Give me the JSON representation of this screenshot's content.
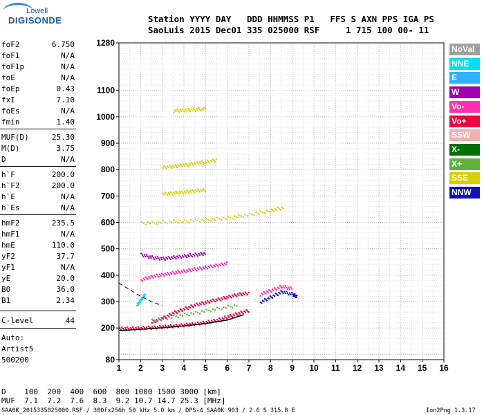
{
  "logo": {
    "line1": "Lowell",
    "line2": "DIGISONDE"
  },
  "header": {
    "line1": "Station YYYY DAY   DDD HHMMSS P1   FFS S AXN PPS IGA PS",
    "line2": "SaoLuis 2015 Dec01 335 025000 RSF     1 715 100 00- 11"
  },
  "params": [
    {
      "name": "foF2",
      "value": "6.750"
    },
    {
      "name": "foF1",
      "value": "N/A"
    },
    {
      "name": "foF1p",
      "value": "N/A"
    },
    {
      "name": "foE",
      "value": "N/A"
    },
    {
      "name": "foEp",
      "value": "0.43"
    },
    {
      "name": "fxI",
      "value": "7.10"
    },
    {
      "name": "foEs",
      "value": "N/A"
    },
    {
      "name": "fmin",
      "value": "1.40"
    },
    {
      "name": "MUF(D)",
      "value": "25.30"
    },
    {
      "name": "M(D)",
      "value": "3.75"
    },
    {
      "name": "D",
      "value": "N/A"
    },
    {
      "name": "h`F",
      "value": "200.0"
    },
    {
      "name": "h`F2",
      "value": "200.0"
    },
    {
      "name": "h`E",
      "value": "N/A"
    },
    {
      "name": "h`Es",
      "value": "N/A"
    },
    {
      "name": "hmF2",
      "value": "235.5"
    },
    {
      "name": "hmF1",
      "value": "N/A"
    },
    {
      "name": "hmE",
      "value": "110.0"
    },
    {
      "name": "yF2",
      "value": "37.7"
    },
    {
      "name": "yF1",
      "value": "N/A"
    },
    {
      "name": "yE",
      "value": "20.0"
    },
    {
      "name": "B0",
      "value": "36.0"
    },
    {
      "name": "B1",
      "value": "2.34"
    },
    {
      "name": "C-level",
      "value": "44"
    }
  ],
  "auto": [
    "Auto:",
    "Artist5",
    "500200"
  ],
  "footer": {
    "d_line": "D    100  200  400  600  800 1000 1500 3000 [km]",
    "muf_line": "MUF  7.1  7.2  7.6  8.3  9.2 10.7 14.7 25.3 [MHz]",
    "file_line": "SAA0K_2015335025000.RSF / 300fx256h 50 kHz 5.0 km / DPS-4 SAA0K 903 / 2.6 S 315.8 E",
    "version": "Ion2Png 1.3.17"
  },
  "legend": [
    {
      "label": "NoVal",
      "color": "#a0a0a0"
    },
    {
      "label": "NNE",
      "color": "#00e0f0"
    },
    {
      "label": "E",
      "color": "#30b0ff"
    },
    {
      "label": "W",
      "color": "#9c00b0"
    },
    {
      "label": "Vo-",
      "color": "#ff30b0"
    },
    {
      "label": "Vo+",
      "color": "#f00040"
    },
    {
      "label": "SSW",
      "color": "#f0b0b0"
    },
    {
      "label": "X-",
      "color": "#007000"
    },
    {
      "label": "X+",
      "color": "#60b040"
    },
    {
      "label": "SSE",
      "color": "#d8d000"
    },
    {
      "label": "NNW",
      "color": "#1010c0"
    }
  ],
  "chart_data": {
    "type": "scatter",
    "title": "",
    "xlabel": "",
    "ylabel": "",
    "xlim": [
      1,
      16
    ],
    "ylim": [
      80,
      1280
    ],
    "x_ticks": [
      1,
      2,
      3,
      4,
      5,
      6,
      7,
      8,
      9,
      10,
      11,
      12,
      13,
      14,
      15,
      16
    ],
    "y_ticks": [
      80,
      200,
      300,
      400,
      500,
      600,
      700,
      800,
      900,
      1000,
      1100,
      1280
    ],
    "grid": true,
    "traces": [
      {
        "name": "SSE",
        "color": "#d8d000",
        "x": [
          2.0,
          3.0,
          4.0,
          5.0,
          6.0,
          7.0,
          8.0,
          8.6
        ],
        "y": [
          600,
          603,
          608,
          612,
          620,
          632,
          648,
          660
        ]
      },
      {
        "name": "SSE",
        "color": "#d8d000",
        "x": [
          3.0,
          3.5,
          4.0,
          4.5,
          5.0,
          5.5
        ],
        "y": [
          812,
          815,
          820,
          826,
          832,
          840
        ]
      },
      {
        "name": "SSE",
        "color": "#d8d000",
        "x": [
          3.0,
          3.5,
          4.0,
          4.5,
          5.0
        ],
        "y": [
          710,
          714,
          718,
          722,
          726
        ]
      },
      {
        "name": "SSE",
        "color": "#d8d000",
        "x": [
          3.5,
          4.0,
          4.5,
          5.0
        ],
        "y": [
          1025,
          1028,
          1030,
          1033
        ]
      },
      {
        "name": "Vo-",
        "color": "#ff30b0",
        "x": [
          2.0,
          2.5,
          3.0,
          3.5,
          4.0,
          4.5,
          5.0,
          5.5,
          6.0
        ],
        "y": [
          385,
          398,
          405,
          412,
          418,
          425,
          432,
          440,
          448
        ]
      },
      {
        "name": "W",
        "color": "#9c00b0",
        "x": [
          2.0,
          2.5,
          3.0,
          3.5,
          4.0,
          4.5,
          5.0
        ],
        "y": [
          480,
          470,
          465,
          470,
          475,
          480,
          485
        ]
      },
      {
        "name": "Vo+",
        "color": "#f00040",
        "x": [
          2.5,
          3.0,
          3.5,
          4.0,
          4.5,
          5.0,
          5.5,
          6.0,
          6.5,
          7.0
        ],
        "y": [
          225,
          240,
          260,
          275,
          290,
          300,
          310,
          320,
          330,
          335
        ]
      },
      {
        "name": "Vo+",
        "color": "#f00040",
        "x": [
          1.0,
          1.5,
          2.0,
          2.5,
          3.0,
          3.5,
          4.0,
          4.5,
          5.0,
          5.5,
          6.0,
          6.5,
          7.0
        ],
        "y": [
          200,
          201,
          202,
          204,
          207,
          210,
          214,
          218,
          224,
          232,
          245,
          258,
          270
        ]
      },
      {
        "name": "Vo-",
        "color": "#ff30b0",
        "x": [
          7.5,
          8.0,
          8.5,
          9.0
        ],
        "y": [
          330,
          345,
          360,
          350
        ]
      },
      {
        "name": "NNW",
        "color": "#1010c0",
        "x": [
          7.5,
          8.0,
          8.5,
          9.0,
          9.2
        ],
        "y": [
          300,
          320,
          340,
          330,
          320
        ]
      },
      {
        "name": "X+",
        "color": "#60b040",
        "x": [
          2.5,
          3.5,
          4.5,
          5.5,
          6.5
        ],
        "y": [
          230,
          245,
          260,
          275,
          290
        ]
      },
      {
        "name": "NNE",
        "color": "#00e0f0",
        "x": [
          1.8,
          2.0,
          2.2
        ],
        "y": [
          290,
          310,
          330
        ]
      }
    ],
    "profile": {
      "x": [
        1.0,
        2.0,
        3.0,
        4.0,
        5.0,
        6.0,
        6.75
      ],
      "y": [
        190,
        195,
        201,
        208,
        217,
        230,
        250
      ]
    },
    "profile_dashed": {
      "x": [
        1.0,
        1.5,
        2.0,
        2.5,
        3.0
      ],
      "y": [
        370,
        345,
        320,
        300,
        285
      ]
    }
  }
}
